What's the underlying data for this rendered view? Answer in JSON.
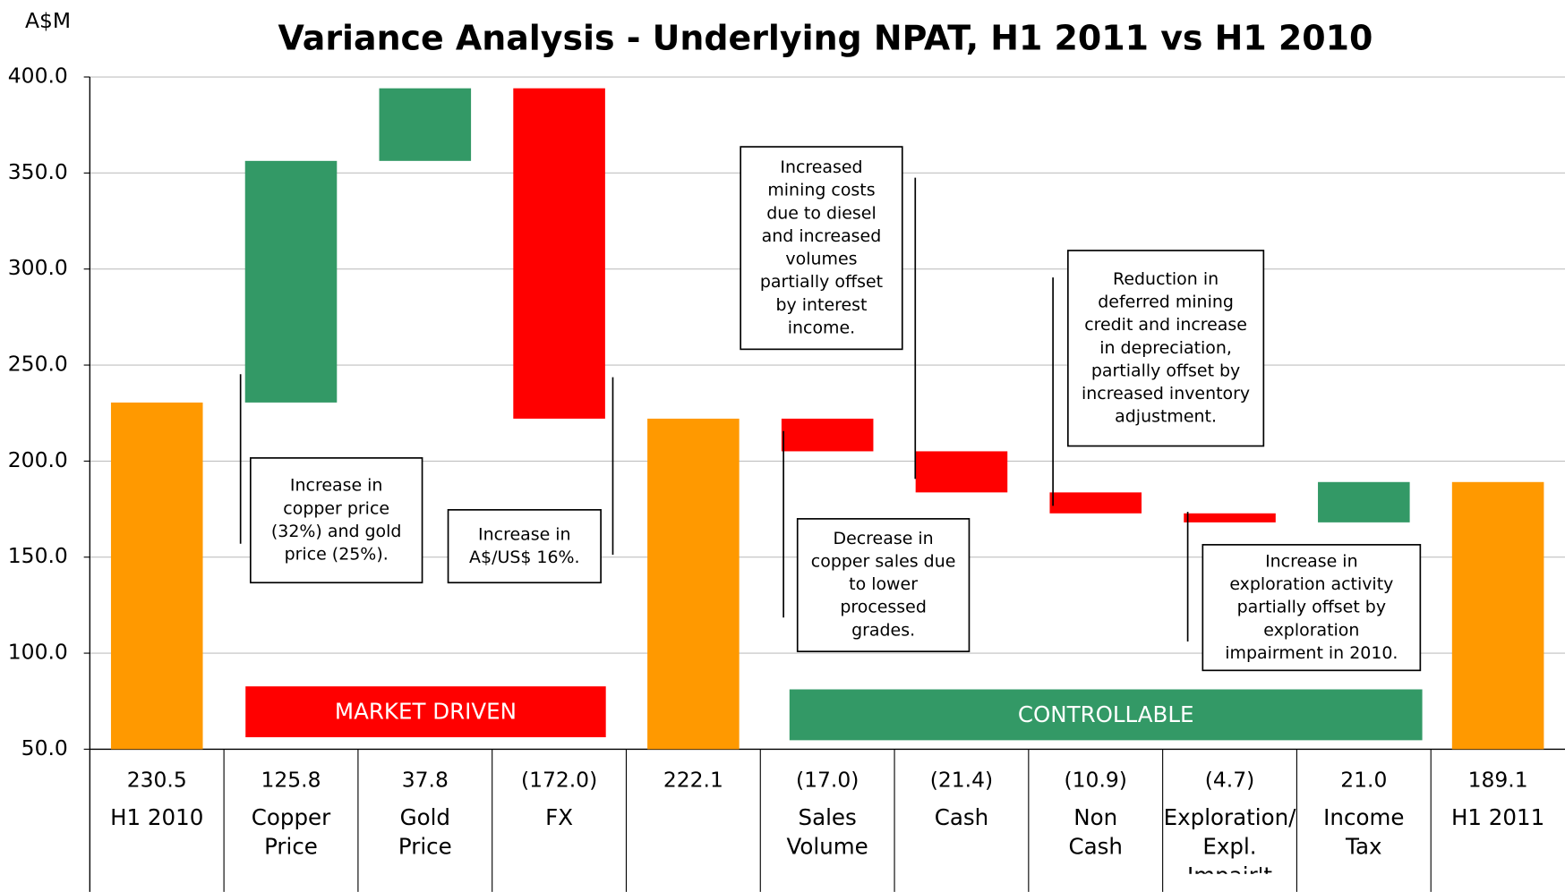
{
  "chart_data": {
    "type": "waterfall",
    "title": "Variance Analysis - Underlying  NPAT, H1 2011 vs H1 2010",
    "y_axis_label": "A$M",
    "categories": [
      "H1 2010",
      "Copper\nPrice",
      "Gold\nPrice",
      "FX",
      null,
      "Sales\nVolume",
      "Cash",
      "Non\nCash",
      "Exploration/\nExpl. Impair't",
      "Income\nTax",
      "H1 2011"
    ],
    "values": [
      230.5,
      125.8,
      37.8,
      -172.0,
      222.1,
      -17.0,
      -21.4,
      -10.9,
      -4.7,
      21.0,
      189.1
    ],
    "value_labels": [
      "230.5",
      "125.8",
      "37.8",
      "(172.0)",
      "222.1",
      "(17.0)",
      "(21.4)",
      "(10.9)",
      "(4.7)",
      "21.0",
      "189.1"
    ],
    "measure": [
      "absolute",
      "relative",
      "relative",
      "relative",
      "absolute",
      "relative",
      "relative",
      "relative",
      "relative",
      "relative",
      "absolute"
    ],
    "colors": [
      "#ff9900",
      "#339966",
      "#339966",
      "#ff0000",
      "#ff9900",
      "#ff0000",
      "#ff0000",
      "#ff0000",
      "#ff0000",
      "#339966",
      "#ff9900"
    ],
    "ylim": [
      50,
      400
    ],
    "yticks": [
      {
        "value": 50,
        "label": "50.0"
      },
      {
        "value": 100,
        "label": "100.0"
      },
      {
        "value": 150,
        "label": "150.0"
      },
      {
        "value": 200,
        "label": "200.0"
      },
      {
        "value": 250,
        "label": "250.0"
      },
      {
        "value": 300,
        "label": "300.0"
      },
      {
        "value": 350,
        "label": "350.0"
      },
      {
        "value": 400,
        "label": "400.0"
      }
    ],
    "grid": true,
    "groups": [
      {
        "label": "MARKET DRIVEN",
        "color": "#ff0000"
      },
      {
        "label": "CONTROLLABLE",
        "color": "#339966"
      }
    ],
    "annotations": [
      {
        "text": "Increase in\ncopper price\n(32%) and gold\nprice (25%)."
      },
      {
        "text": "Increase in\nA$/US$ 16%."
      },
      {
        "text": "Increased\nmining costs\ndue to diesel\nand increased\nvolumes\npartially offset\nby interest\nincome."
      },
      {
        "text": "Decrease in\ncopper sales due\nto lower\nprocessed\ngrades."
      },
      {
        "text": "Reduction in\ndeferred mining\ncredit and increase\nin depreciation,\npartially offset by\nincreased inventory\nadjustment."
      },
      {
        "text": "Increase in\nexploration activity\npartially offset by\nexploration\nimpairment in 2010."
      }
    ]
  }
}
